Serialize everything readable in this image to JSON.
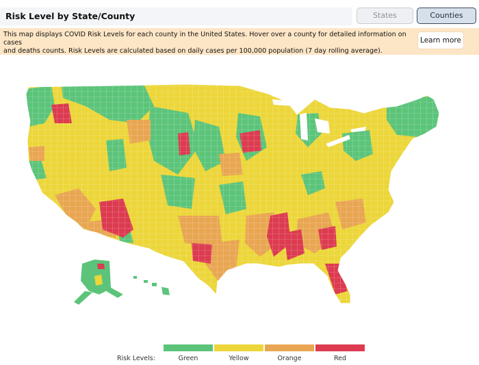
{
  "header": {
    "title": "Risk Level by State/County",
    "toggle_states": "States",
    "toggle_counties": "Counties",
    "active_toggle": "Counties"
  },
  "info": {
    "line1": "This map displays COVID Risk Levels for each county in the United States. Hover over a county for detailed information on cases",
    "line2": "and deaths counts. Risk Levels are calculated based on daily cases per 100,000 population (7 day rolling average).",
    "learn_more": "Learn more"
  },
  "map": {
    "region": "United States (counties)"
  },
  "legend": {
    "title": "Risk Levels:",
    "levels": [
      {
        "label": "Green",
        "color": "#5cc47a"
      },
      {
        "label": "Yellow",
        "color": "#ecd63a"
      },
      {
        "label": "Orange",
        "color": "#e9a652"
      },
      {
        "label": "Red",
        "color": "#dc3b50"
      }
    ]
  }
}
